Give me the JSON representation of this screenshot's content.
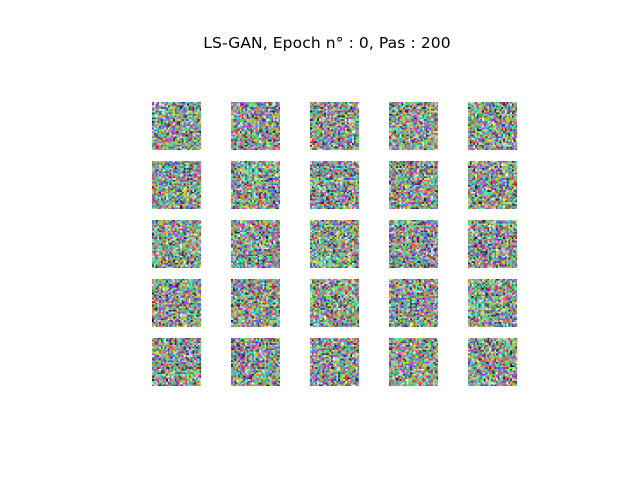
{
  "figure": {
    "title": "LS-GAN, Epoch n° : 0, Pas : 200"
  },
  "grid": {
    "rows": 5,
    "cols": 5,
    "tile_pixels": 28,
    "content": "random-color-noise",
    "palette": [
      "#4bd36b",
      "#c04bd6",
      "#d6c24b",
      "#4b7fd6",
      "#d64b6a",
      "#4bd6cf",
      "#8fd64b",
      "#6b4bd6",
      "#e0e0e0",
      "#3a3a3a",
      "#d68a4b",
      "#4bd699"
    ]
  }
}
